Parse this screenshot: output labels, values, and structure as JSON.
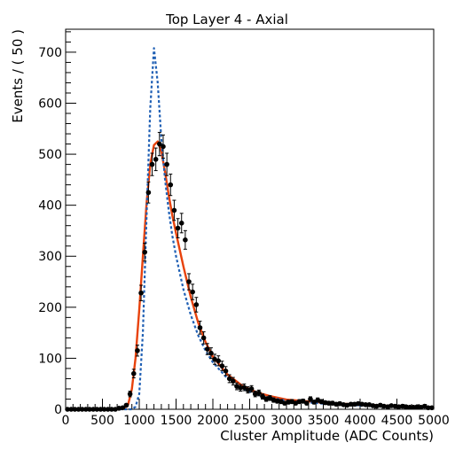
{
  "chart_data": {
    "type": "line",
    "title": "Top Layer 4 - Axial",
    "xlabel": "Cluster Amplitude (ADC Counts)",
    "ylabel": "Events / ( 50 )",
    "xlim": [
      0,
      5000
    ],
    "ylim": [
      0,
      745
    ],
    "x_ticks": [
      0,
      500,
      1000,
      1500,
      2000,
      2500,
      3000,
      3500,
      4000,
      4500,
      5000
    ],
    "y_ticks": [
      0,
      100,
      200,
      300,
      400,
      500,
      600,
      700
    ],
    "grid": false,
    "legend": "none",
    "series": [
      {
        "style": "points-with-error-bars",
        "color": "#000000",
        "x": [
          25,
          75,
          125,
          175,
          225,
          275,
          325,
          375,
          425,
          475,
          525,
          575,
          625,
          675,
          725,
          775,
          825,
          875,
          925,
          975,
          1025,
          1075,
          1125,
          1175,
          1225,
          1275,
          1325,
          1375,
          1425,
          1475,
          1525,
          1575,
          1625,
          1675,
          1725,
          1775,
          1825,
          1875,
          1925,
          1975,
          2025,
          2075,
          2125,
          2175,
          2225,
          2275,
          2325,
          2375,
          2425,
          2475,
          2525,
          2575,
          2625,
          2675,
          2725,
          2775,
          2825,
          2875,
          2925,
          2975,
          3025,
          3075,
          3125,
          3175,
          3225,
          3275,
          3325,
          3375,
          3425,
          3475,
          3525,
          3575,
          3625,
          3675,
          3725,
          3775,
          3825,
          3875,
          3925,
          3975,
          4025,
          4075,
          4125,
          4175,
          4225,
          4275,
          4325,
          4375,
          4425,
          4475,
          4525,
          4575,
          4625,
          4675,
          4725,
          4775,
          4825,
          4875,
          4925,
          4975
        ],
        "y": [
          0,
          0,
          0,
          0,
          0,
          0,
          0,
          0,
          0,
          0,
          0,
          0,
          0,
          0,
          2,
          3,
          8,
          30,
          70,
          115,
          228,
          308,
          425,
          480,
          490,
          520,
          515,
          480,
          440,
          390,
          355,
          365,
          332,
          250,
          230,
          205,
          160,
          140,
          118,
          110,
          98,
          95,
          85,
          75,
          60,
          55,
          45,
          42,
          43,
          38,
          40,
          30,
          32,
          25,
          20,
          22,
          18,
          16,
          15,
          12,
          14,
          15,
          12,
          15,
          16,
          12,
          20,
          14,
          18,
          15,
          13,
          12,
          12,
          10,
          11,
          9,
          8,
          10,
          10,
          11,
          10,
          9,
          9,
          7,
          6,
          8,
          6,
          5,
          7,
          6,
          5,
          6,
          5,
          4,
          4,
          5,
          4,
          6,
          3,
          3
        ]
      },
      {
        "style": "solid",
        "color": "#e8420c",
        "x": [
          0,
          700,
          800,
          850,
          900,
          950,
          1000,
          1050,
          1100,
          1150,
          1200,
          1250,
          1300,
          1350,
          1400,
          1450,
          1500,
          1600,
          1700,
          1800,
          1900,
          2000,
          2200,
          2400,
          2600,
          2800,
          3000,
          3500,
          4000,
          4500,
          5000
        ],
        "y": [
          0,
          0,
          2,
          10,
          40,
          100,
          195,
          300,
          405,
          480,
          518,
          525,
          505,
          465,
          420,
          380,
          345,
          280,
          220,
          170,
          132,
          103,
          68,
          46,
          33,
          25,
          19,
          13,
          9,
          6,
          4
        ]
      },
      {
        "style": "dashed",
        "color": "#1f5fb4",
        "x": [
          0,
          900,
          950,
          1000,
          1050,
          1100,
          1150,
          1200,
          1250,
          1300,
          1350,
          1400,
          1450,
          1500,
          1600,
          1700,
          1800,
          1900,
          2000,
          2200,
          2400,
          2600,
          2800,
          3000,
          3500,
          4000,
          4500,
          5000
        ],
        "y": [
          0,
          0,
          5,
          30,
          150,
          380,
          590,
          708,
          640,
          530,
          450,
          390,
          340,
          300,
          235,
          185,
          145,
          115,
          92,
          60,
          40,
          29,
          22,
          17,
          11,
          7,
          5,
          3
        ]
      }
    ]
  }
}
